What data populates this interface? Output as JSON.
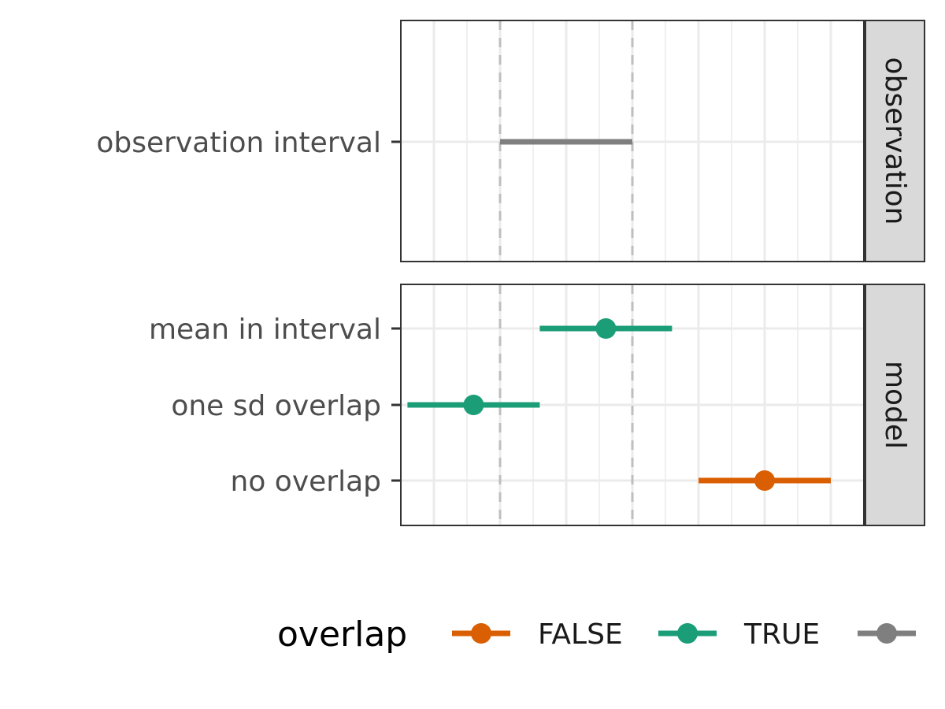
{
  "chart_data": {
    "type": "interval",
    "x": {
      "range": [
        -3.5,
        3.5
      ]
    },
    "reference_lines": [
      -2,
      0
    ],
    "grid": true,
    "legend": {
      "position": "bottom",
      "title": "overlap",
      "entries": [
        {
          "label": "FALSE",
          "color": "#D95F02"
        },
        {
          "label": "TRUE",
          "color": "#1B9E77"
        },
        {
          "label": "",
          "color": "#7F7F7F"
        }
      ]
    },
    "panels": [
      {
        "strip": "observation",
        "rows": [
          {
            "label": "observation interval",
            "low": -2,
            "high": 0,
            "point": null,
            "overlap": null
          }
        ]
      },
      {
        "strip": "model",
        "rows": [
          {
            "label": "mean in interval",
            "low": -1.4,
            "high": 0.6,
            "point": -0.4,
            "overlap": "TRUE"
          },
          {
            "label": "one sd overlap",
            "low": -3.4,
            "high": -1.4,
            "point": -2.4,
            "overlap": "TRUE"
          },
          {
            "label": "no overlap",
            "low": 1,
            "high": 3,
            "point": 2,
            "overlap": "FALSE"
          }
        ]
      }
    ]
  }
}
